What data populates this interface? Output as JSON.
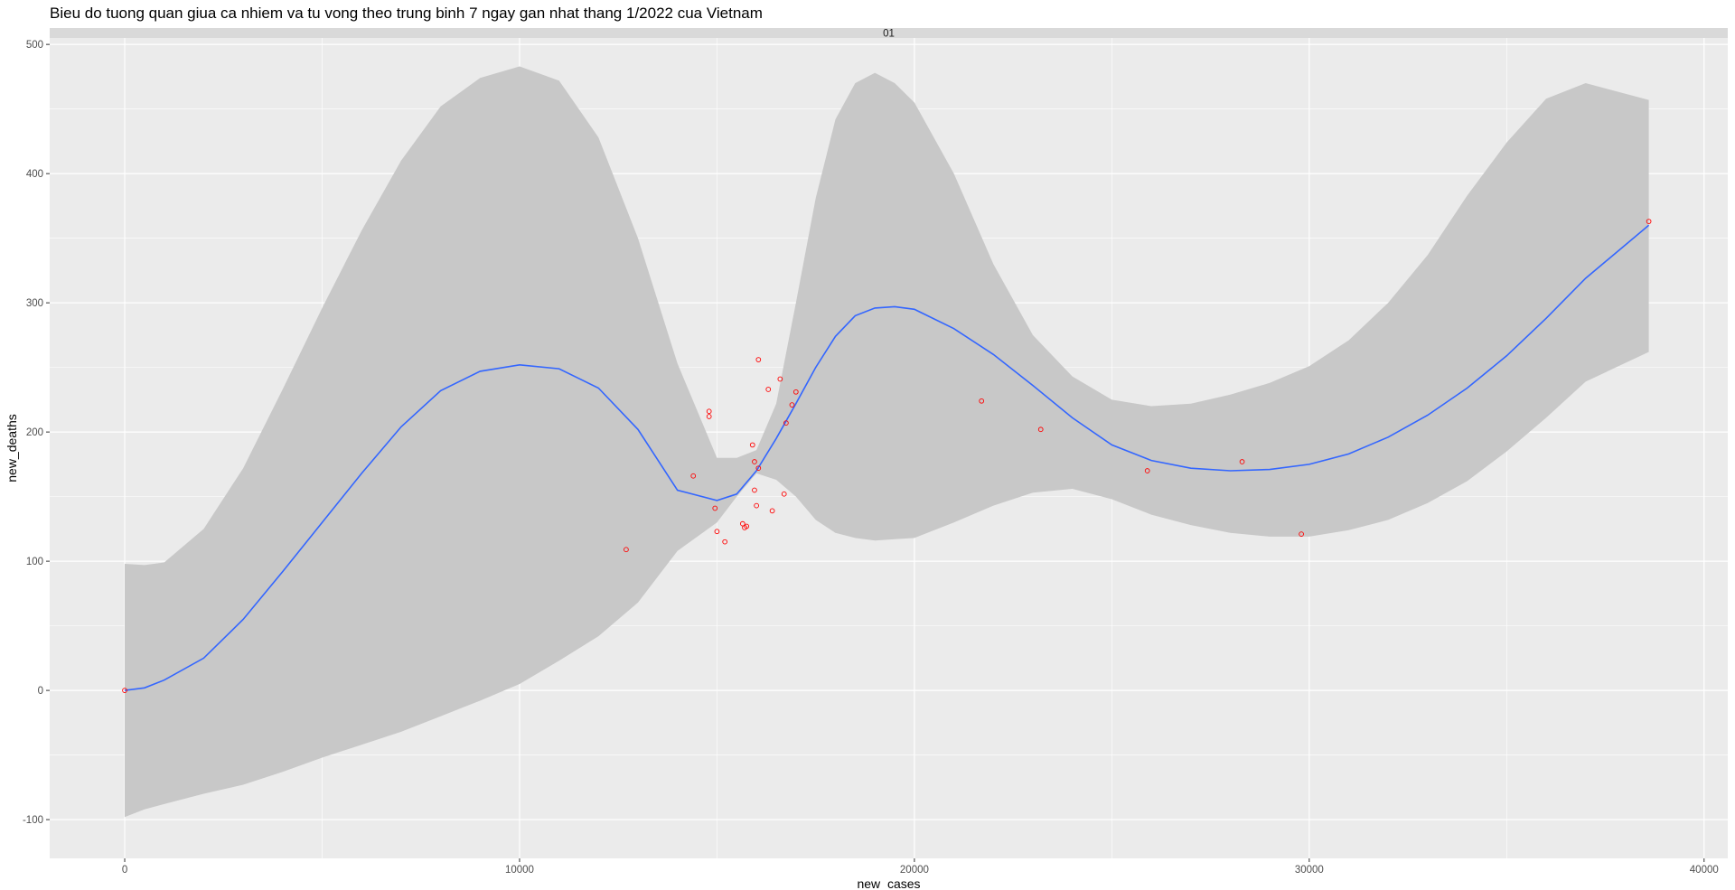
{
  "title": "Bieu do tuong quan giua ca nhiem va tu vong theo trung binh 7 ngay gan nhat thang 1/2022 cua Vietnam",
  "colors": {
    "panel_bg": "#ebebeb",
    "grid_major": "#ffffff",
    "strip_bg": "#d9d9d9",
    "ribbon": "#c8c8c8",
    "smooth_line": "#3366ff",
    "points": "#ff0000"
  },
  "chart_data": {
    "type": "scatter",
    "facet_label": "01",
    "xlabel": "new_cases",
    "ylabel": "new_deaths",
    "xlim": [
      -1900,
      40600
    ],
    "ylim": [
      -130,
      505
    ],
    "x_ticks": [
      0,
      10000,
      20000,
      30000,
      40000
    ],
    "x_tick_labels": [
      "0",
      "10000",
      "20000",
      "30000",
      "40000"
    ],
    "y_ticks": [
      -100,
      0,
      100,
      200,
      300,
      400,
      500
    ],
    "y_tick_labels": [
      "-100",
      "0",
      "100",
      "200",
      "300",
      "400",
      "500"
    ],
    "grid": true,
    "points": {
      "x": [
        0,
        12700,
        14400,
        14800,
        14800,
        14950,
        15000,
        15200,
        15650,
        15700,
        15750,
        15900,
        15950,
        15950,
        16000,
        16050,
        16050,
        16300,
        16400,
        16600,
        16700,
        16750,
        16900,
        17000,
        21700,
        23200,
        25900,
        28300,
        29800,
        38600
      ],
      "y": [
        0,
        109,
        166,
        212,
        216,
        141,
        123,
        115,
        129,
        126,
        127,
        190,
        177,
        155,
        143,
        172,
        256,
        233,
        139,
        241,
        152,
        207,
        221,
        231,
        224,
        202,
        170,
        177,
        121,
        363
      ]
    },
    "smooth": {
      "x": [
        0,
        500,
        1000,
        2000,
        3000,
        4000,
        5000,
        6000,
        7000,
        8000,
        9000,
        10000,
        11000,
        12000,
        13000,
        14000,
        15000,
        15500,
        16000,
        16500,
        17000,
        17500,
        18000,
        18500,
        19000,
        19500,
        20000,
        21000,
        22000,
        23000,
        24000,
        25000,
        26000,
        27000,
        28000,
        29000,
        30000,
        31000,
        32000,
        33000,
        34000,
        35000,
        36000,
        37000,
        38600
      ],
      "y": [
        0,
        2,
        8,
        25,
        55,
        92,
        130,
        168,
        204,
        232,
        247,
        252,
        249,
        234,
        202,
        155,
        147,
        152,
        170,
        195,
        222,
        250,
        274,
        290,
        296,
        297,
        295,
        280,
        260,
        236,
        211,
        190,
        178,
        172,
        170,
        171,
        175,
        183,
        196,
        213,
        234,
        259,
        288,
        319,
        360
      ],
      "lower": [
        -98,
        -92,
        -88,
        -80,
        -73,
        -63,
        -52,
        -42,
        -32,
        -20,
        -8,
        5,
        23,
        42,
        68,
        108,
        130,
        150,
        168,
        163,
        150,
        132,
        122,
        118,
        116,
        117,
        118,
        130,
        143,
        153,
        156,
        148,
        136,
        128,
        122,
        119,
        119,
        124,
        132,
        145,
        162,
        185,
        211,
        239,
        262
      ],
      "upper": [
        98,
        97,
        99,
        125,
        172,
        233,
        296,
        356,
        410,
        452,
        474,
        483,
        472,
        428,
        350,
        253,
        180,
        180,
        186,
        222,
        300,
        381,
        442,
        470,
        478,
        470,
        455,
        400,
        330,
        275,
        243,
        225,
        220,
        222,
        229,
        238,
        251,
        271,
        300,
        337,
        383,
        424,
        458,
        470,
        457
      ]
    }
  }
}
